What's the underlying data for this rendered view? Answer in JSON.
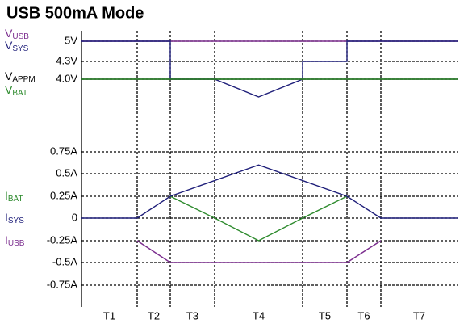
{
  "chart_data": [
    {
      "type": "line",
      "title": "USB 500mA Mode",
      "ylim": [
        3.7,
        5.0
      ],
      "yticks": [
        {
          "value": 5.0,
          "label": "5V"
        },
        {
          "value": 4.3,
          "label": "4.3V"
        },
        {
          "value": 4.0,
          "label": "4.0V"
        }
      ],
      "grid": true,
      "series": [
        {
          "name": "V",
          "name_sub": "USB",
          "color": "#7b2d8e",
          "x": [
            0,
            7
          ],
          "values": [
            5.0,
            5.0
          ]
        },
        {
          "name": "V",
          "name_sub": "SYS",
          "color": "#1f1f7a",
          "x": [
            0,
            2,
            2,
            3,
            3.5,
            4,
            4,
            5,
            5,
            7
          ],
          "values": [
            5.0,
            5.0,
            4.0,
            4.0,
            3.7,
            4.0,
            4.3,
            4.3,
            5.0,
            5.0
          ]
        },
        {
          "name": "V",
          "name_sub": "APPM",
          "color": "#000000",
          "x": [
            0,
            7
          ],
          "values": [
            4.0,
            4.0
          ]
        },
        {
          "name": "V",
          "name_sub": "BAT",
          "color": "#2e8b2e",
          "x": [
            0,
            7
          ],
          "values": [
            4.0,
            4.0
          ]
        }
      ]
    },
    {
      "type": "line",
      "ylim": [
        -0.75,
        0.75
      ],
      "yticks": [
        {
          "value": 0.75,
          "label": "0.75A"
        },
        {
          "value": 0.5,
          "label": "0.5A"
        },
        {
          "value": 0.25,
          "label": "0.25A"
        },
        0,
        {
          "value": -0.25,
          "label": "-0.25A"
        },
        {
          "value": -0.5,
          "label": "-0.5A"
        },
        {
          "value": -0.75,
          "label": "-0.75A"
        }
      ],
      "grid": true,
      "periods": [
        "T1",
        "T2",
        "T3",
        "T4",
        "T5",
        "T6",
        "T7"
      ],
      "series": [
        {
          "name": "I",
          "name_sub": "BAT",
          "color": "#2e8b2e",
          "x": [
            2,
            3,
            3.5,
            4,
            5
          ],
          "values": [
            0.25,
            0,
            -0.25,
            0,
            0.25
          ]
        },
        {
          "name": "I",
          "name_sub": "SYS",
          "color": "#1f1f7a",
          "x": [
            0,
            1,
            2,
            3.5,
            5,
            6,
            7
          ],
          "values": [
            0,
            0,
            0.25,
            0.6,
            0.25,
            0,
            0
          ]
        },
        {
          "name": "I",
          "name_sub": "USB",
          "color": "#7b2d8e",
          "x": [
            1,
            2,
            5,
            6
          ],
          "values": [
            -0.25,
            -0.5,
            -0.5,
            -0.25
          ]
        }
      ]
    }
  ]
}
